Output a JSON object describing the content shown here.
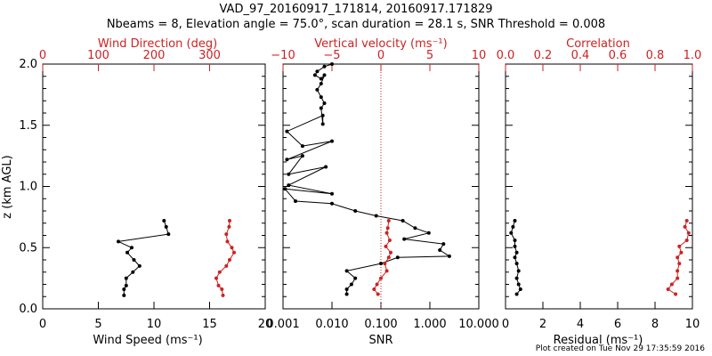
{
  "header": {
    "title_line1": "VAD_97_20160917_171814, 20160917.171829",
    "title_line2": "Nbeams = 8, Elevation angle = 75.0°, scan duration = 28.1 s, SNR Threshold = 0.008"
  },
  "footer": {
    "text": "Plot created on Tue Nov 29 17:35:59 2016"
  },
  "colors": {
    "primary": "#000000",
    "secondary": "#cc2222"
  },
  "chart_data": [
    {
      "type": "line",
      "panel": "wind",
      "xlabel": "Wind Speed (ms⁻¹)",
      "xlim": [
        0,
        20
      ],
      "xticks": [
        "0",
        "5",
        "10",
        "15",
        "20"
      ],
      "top_label": "Wind Direction (deg)",
      "top_lim": [
        0,
        400
      ],
      "top_ticks": [
        "0",
        "100",
        "200",
        "300"
      ],
      "ylabel": "z (km AGL)",
      "ylim": [
        0,
        2
      ],
      "yticks": [
        "0.0",
        "0.5",
        "1.0",
        "1.5",
        "2.0"
      ],
      "series": [
        {
          "axis": "bottom",
          "color": "#000000",
          "x": [
            7.3,
            7.3,
            7.5,
            7.5,
            8.1,
            8.7,
            8.2,
            7.6,
            8.0,
            6.8,
            11.3,
            11.1,
            10.9
          ],
          "y": [
            0.11,
            0.16,
            0.19,
            0.25,
            0.3,
            0.35,
            0.4,
            0.46,
            0.5,
            0.55,
            0.61,
            0.67,
            0.72
          ]
        },
        {
          "axis": "top",
          "color": "#cc2222",
          "x": [
            324,
            322,
            316,
            312,
            318,
            330,
            336,
            344,
            340,
            332,
            330,
            335,
            336
          ],
          "y": [
            0.11,
            0.16,
            0.19,
            0.25,
            0.3,
            0.35,
            0.4,
            0.46,
            0.5,
            0.55,
            0.61,
            0.67,
            0.72
          ]
        }
      ]
    },
    {
      "type": "line",
      "panel": "snr",
      "xlabel": "SNR",
      "xscale": "log",
      "xlim": [
        0.001,
        10
      ],
      "xticks": [
        "0.001",
        "0.010",
        "0.100",
        "1.000",
        "10.000"
      ],
      "top_label": "Vertical velocity (ms⁻¹)",
      "top_lim": [
        -10,
        10
      ],
      "top_ticks": [
        "−10",
        "−5",
        "0",
        "5",
        "10"
      ],
      "zero_line_velocity": 0,
      "ylim": [
        0,
        2
      ],
      "series": [
        {
          "axis": "bottom",
          "color": "#000000",
          "x": [
            0.02,
            0.02,
            0.025,
            0.03,
            0.02,
            0.1,
            0.22,
            2.5,
            1.6,
            1.9,
            0.3,
            0.95,
            0.5,
            0.28,
            0.08,
            0.03,
            0.01,
            0.0018,
            0.0011,
            0.01,
            0.0013,
            0.0075,
            0.0013,
            0.0025,
            0.0012,
            0.01,
            0.0025,
            0.0012,
            0.0065,
            0.0065,
            0.006,
            0.007,
            0.006,
            0.005,
            0.006,
            0.007,
            0.006,
            0.0045,
            0.005,
            0.007,
            0.01
          ],
          "y": [
            0.12,
            0.16,
            0.2,
            0.25,
            0.31,
            0.37,
            0.42,
            0.43,
            0.48,
            0.53,
            0.57,
            0.62,
            0.66,
            0.72,
            0.76,
            0.8,
            0.86,
            0.88,
            0.98,
            0.94,
            1.01,
            1.16,
            1.1,
            1.25,
            1.22,
            1.37,
            1.33,
            1.45,
            1.58,
            1.51,
            1.64,
            1.68,
            1.73,
            1.79,
            1.84,
            1.91,
            1.88,
            1.91,
            1.94,
            1.98,
            2.0
          ]
        },
        {
          "axis": "top",
          "color": "#cc2222",
          "x": [
            -0.3,
            -0.7,
            -0.4,
            0.0,
            0.6,
            0.4,
            0.8,
            1.0,
            0.5,
            0.9,
            0.6,
            0.7,
            0.8
          ],
          "y": [
            0.12,
            0.16,
            0.2,
            0.25,
            0.31,
            0.37,
            0.42,
            0.46,
            0.51,
            0.56,
            0.62,
            0.66,
            0.72
          ]
        }
      ]
    },
    {
      "type": "line",
      "panel": "residual",
      "xlabel": "Residual (ms⁻¹)",
      "xlim": [
        0,
        10
      ],
      "xticks": [
        "0",
        "2",
        "4",
        "6",
        "8",
        "10"
      ],
      "top_label": "Correlation",
      "top_lim": [
        0,
        1
      ],
      "top_ticks": [
        "0.0",
        "0.2",
        "0.4",
        "0.6",
        "0.8",
        "1.0"
      ],
      "ylim": [
        0,
        2
      ],
      "series": [
        {
          "axis": "bottom",
          "color": "#000000",
          "x": [
            0.6,
            0.8,
            0.7,
            0.6,
            0.7,
            0.6,
            0.5,
            0.6,
            0.5,
            0.5,
            0.3,
            0.4,
            0.5
          ],
          "y": [
            0.12,
            0.16,
            0.2,
            0.25,
            0.31,
            0.37,
            0.42,
            0.46,
            0.51,
            0.56,
            0.62,
            0.67,
            0.72
          ]
        },
        {
          "axis": "top",
          "color": "#cc2222",
          "x": [
            0.91,
            0.87,
            0.89,
            0.92,
            0.92,
            0.93,
            0.92,
            0.94,
            0.93,
            0.97,
            0.98,
            0.96,
            0.97
          ],
          "y": [
            0.12,
            0.16,
            0.2,
            0.25,
            0.31,
            0.37,
            0.42,
            0.46,
            0.51,
            0.56,
            0.62,
            0.67,
            0.72
          ]
        }
      ]
    }
  ]
}
